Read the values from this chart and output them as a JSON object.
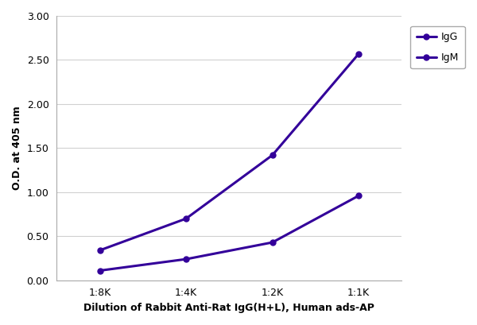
{
  "x_labels": [
    "1:8K",
    "1:4K",
    "1:2K",
    "1:1K"
  ],
  "x_positions": [
    0,
    1,
    2,
    3
  ],
  "IgG_values": [
    0.34,
    0.7,
    1.42,
    2.57
  ],
  "IgM_values": [
    0.11,
    0.24,
    0.43,
    0.96
  ],
  "line_color": "#33009a",
  "marker": "o",
  "marker_size": 5,
  "ylabel": "O.D. at 405 nm",
  "xlabel": "Dilution of Rabbit Anti-Rat IgG(H+L), Human ads-AP",
  "ylim": [
    0.0,
    3.0
  ],
  "yticks": [
    0.0,
    0.5,
    1.0,
    1.5,
    2.0,
    2.5,
    3.0
  ],
  "legend_labels": [
    "IgG",
    "IgM"
  ],
  "axis_label_fontsize": 9,
  "tick_fontsize": 9,
  "legend_fontsize": 9,
  "line_width": 2.2,
  "background_color": "#ffffff",
  "grid_color": "#d0d0d0",
  "spine_color": "#aaaaaa"
}
